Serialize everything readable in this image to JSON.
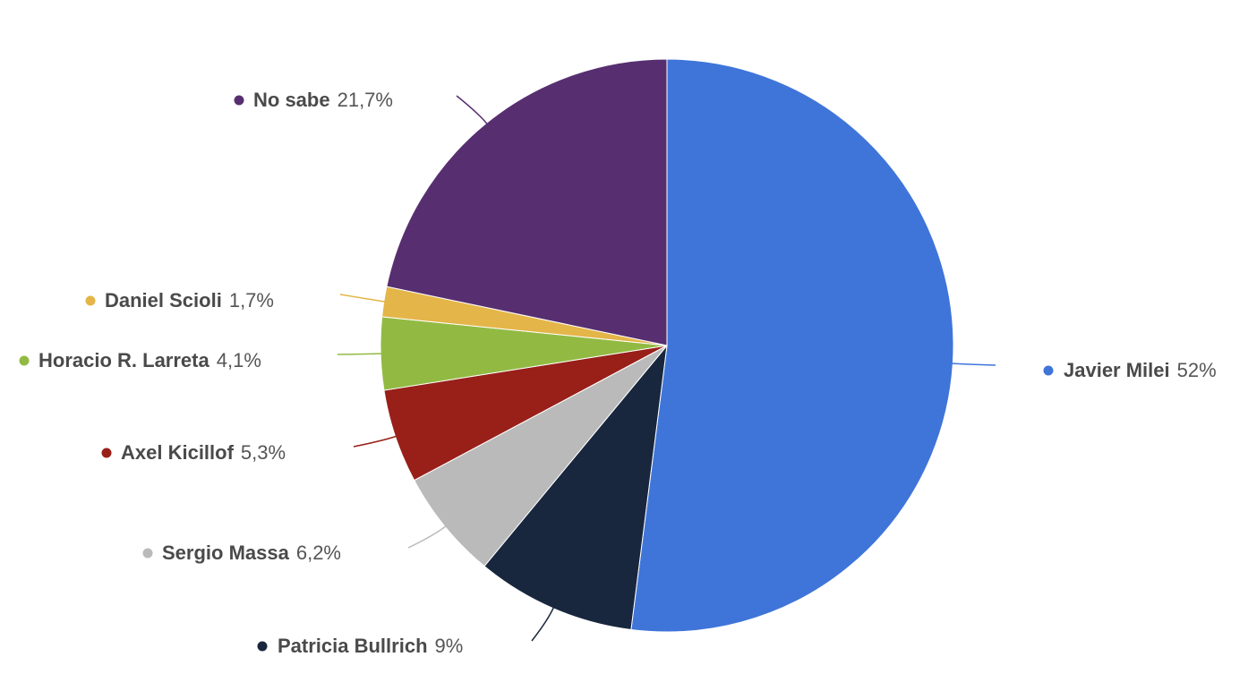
{
  "chart_data": {
    "type": "pie",
    "slices": [
      {
        "label": "Javier Milei",
        "value": 52,
        "value_label": "52%",
        "color": "#3f75d9"
      },
      {
        "label": "Patricia Bullrich",
        "value": 9,
        "value_label": "9%",
        "color": "#18273d"
      },
      {
        "label": "Sergio Massa",
        "value": 6.2,
        "value_label": "6,2%",
        "color": "#bababa"
      },
      {
        "label": "Axel Kicillof",
        "value": 5.3,
        "value_label": "5,3%",
        "color": "#982019"
      },
      {
        "label": "Horacio R. Larreta",
        "value": 4.1,
        "value_label": "4,1%",
        "color": "#92ba43"
      },
      {
        "label": "Daniel Scioli",
        "value": 1.7,
        "value_label": "1,7%",
        "color": "#e4b548"
      },
      {
        "label": "No sabe",
        "value": 21.7,
        "value_label": "21,7%",
        "color": "#572f70"
      }
    ],
    "start_angle": "12 o'clock",
    "direction": "clockwise",
    "labels": "outside with leader lines"
  }
}
